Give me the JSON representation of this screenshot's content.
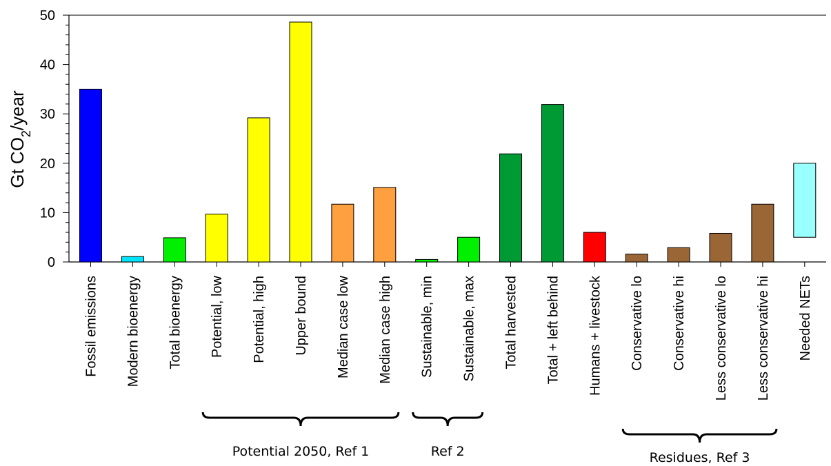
{
  "chart_data": {
    "type": "bar",
    "ylabel": "Gt CO",
    "ylabel_sub": "2",
    "ylabel_suffix": "/year",
    "ylim": [
      0,
      50
    ],
    "yticks": [
      "0",
      "10",
      "20",
      "30",
      "40",
      "50"
    ],
    "grid": false,
    "categories": [
      "Fossil emissions",
      "Modern bioenergy",
      "Total bioenergy",
      "Potential, low",
      "Potential, high",
      "Upper bound",
      "Median case low",
      "Median case high",
      "Sustainable, min",
      "Sustainable, max",
      "Total harvested",
      "Total + left behind",
      "Humans + livestock",
      "Conservative lo",
      "Conservative hi",
      "Less conservative lo",
      "Less conservative hi",
      "Needed NETs"
    ],
    "values": [
      35,
      1.1,
      4.9,
      9.7,
      29.2,
      48.6,
      11.7,
      15.1,
      0.5,
      5.0,
      21.9,
      31.9,
      6.0,
      1.6,
      2.9,
      5.8,
      11.7,
      20.0
    ],
    "range_bars": [
      {
        "category": "Needed NETs",
        "low": 5.0,
        "high": 20.0
      }
    ],
    "colors": [
      "#0000ff",
      "#00e5ff",
      "#00f000",
      "#ffff00",
      "#ffff00",
      "#ffff00",
      "#ffa040",
      "#ffa040",
      "#00f000",
      "#00f000",
      "#009a35",
      "#009a35",
      "#ff0000",
      "#9b6636",
      "#9b6636",
      "#9b6636",
      "#9b6636",
      "#99ffff"
    ],
    "groups": [
      {
        "label": "Potential 2050, Ref 1",
        "from": "Potential, low",
        "to": "Median case high"
      },
      {
        "label": "Ref 2",
        "from": "Sustainable, min",
        "to": "Sustainable, max"
      },
      {
        "label": "Residues, Ref 3",
        "from": "Conservative lo",
        "to": "Less conservative hi"
      }
    ]
  }
}
